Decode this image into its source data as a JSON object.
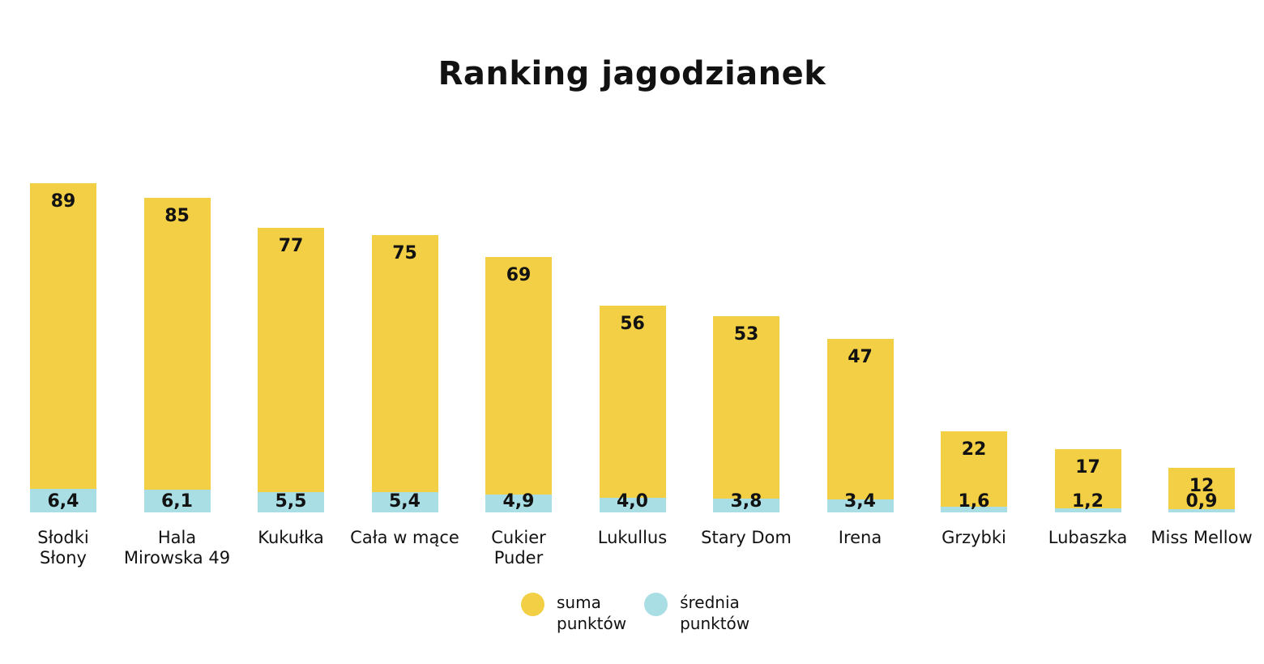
{
  "chart_data": {
    "type": "bar",
    "title": "Ranking jagodzianek",
    "xlabel": "",
    "ylabel": "",
    "ylim": [
      0,
      89
    ],
    "grid": false,
    "axes_visible": false,
    "legend_position": "bottom-center",
    "stacking": "overlay",
    "decimal_separator": ",",
    "series_meta": [
      {
        "name": "suma punktów",
        "label_lines": [
          "suma",
          "punktów"
        ],
        "color": "#F2CF44"
      },
      {
        "name": "średnia punktów",
        "label_lines": [
          "średnia",
          "punktów"
        ],
        "color": "#A9DEE5"
      }
    ],
    "items": [
      {
        "category_lines": [
          "Słodki",
          "Słony"
        ],
        "suma": 89,
        "suma_label": "89",
        "srednia": 6.4,
        "srednia_label": "6,4"
      },
      {
        "category_lines": [
          "Hala",
          "Mirowska 49"
        ],
        "suma": 85,
        "suma_label": "85",
        "srednia": 6.1,
        "srednia_label": "6,1"
      },
      {
        "category_lines": [
          "Kukułka"
        ],
        "suma": 77,
        "suma_label": "77",
        "srednia": 5.5,
        "srednia_label": "5,5"
      },
      {
        "category_lines": [
          "Cała w mące"
        ],
        "suma": 75,
        "suma_label": "75",
        "srednia": 5.4,
        "srednia_label": "5,4"
      },
      {
        "category_lines": [
          "Cukier",
          "Puder"
        ],
        "suma": 69,
        "suma_label": "69",
        "srednia": 4.9,
        "srednia_label": "4,9"
      },
      {
        "category_lines": [
          "Lukullus"
        ],
        "suma": 56,
        "suma_label": "56",
        "srednia": 4.0,
        "srednia_label": "4,0"
      },
      {
        "category_lines": [
          "Stary Dom"
        ],
        "suma": 53,
        "suma_label": "53",
        "srednia": 3.8,
        "srednia_label": "3,8"
      },
      {
        "category_lines": [
          "Irena"
        ],
        "suma": 47,
        "suma_label": "47",
        "srednia": 3.4,
        "srednia_label": "3,4"
      },
      {
        "category_lines": [
          "Grzybki"
        ],
        "suma": 22,
        "suma_label": "22",
        "srednia": 1.6,
        "srednia_label": "1,6"
      },
      {
        "category_lines": [
          "Lubaszka"
        ],
        "suma": 17,
        "suma_label": "17",
        "srednia": 1.2,
        "srednia_label": "1,2"
      },
      {
        "category_lines": [
          "Miss Mellow"
        ],
        "suma": 12,
        "suma_label": "12",
        "srednia": 0.9,
        "srednia_label": "0,9"
      }
    ],
    "colors": {
      "background": "#FFFFFF",
      "text": "#121212",
      "bar_yellow": "#F2CF44",
      "bar_blue": "#A9DEE5"
    }
  }
}
